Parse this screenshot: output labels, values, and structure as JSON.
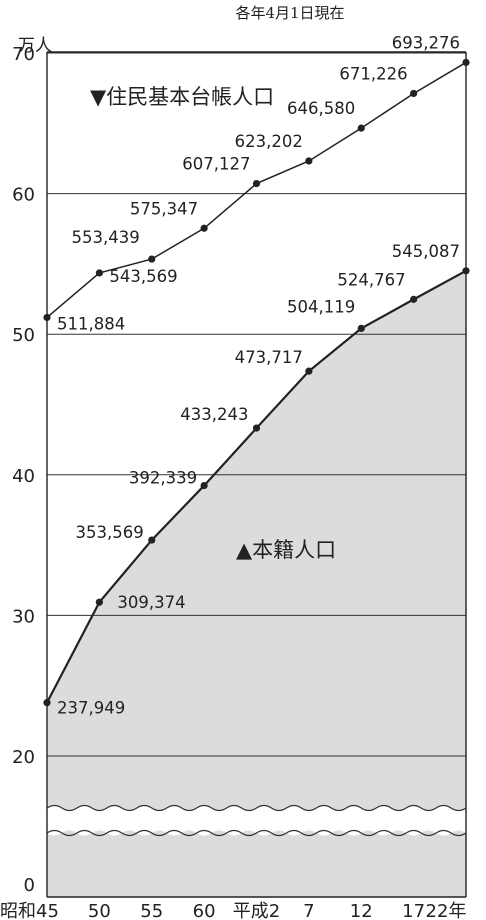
{
  "chart_data": {
    "type": "line",
    "note": "各年4月1日現在",
    "y_unit": "万人",
    "x_unit_suffix": "年",
    "categories": [
      "昭和45",
      "50",
      "55",
      "60",
      "平成2",
      "7",
      "12",
      "17",
      "22"
    ],
    "ylim": [
      0,
      70
    ],
    "y_ticks": [
      0,
      20,
      30,
      40,
      50,
      60,
      70
    ],
    "axis_break": "between 0 and 20",
    "grid": true,
    "series": [
      {
        "name": "▼住民基本台帳人口",
        "values": [
          511884,
          543569,
          553439,
          575347,
          607127,
          623202,
          646580,
          671226,
          693276
        ],
        "labels": [
          "511,884",
          "543,569",
          "553,439",
          "575,347",
          "607,127",
          "623,202",
          "646,580",
          "671,226",
          "693,276"
        ],
        "color": "#222222",
        "fill": "none"
      },
      {
        "name": "▲本籍人口",
        "values": [
          237949,
          309374,
          353569,
          392339,
          433243,
          473717,
          504119,
          524767,
          545087
        ],
        "labels": [
          "237,949",
          "309,374",
          "353,569",
          "392,339",
          "433,243",
          "473,717",
          "504,119",
          "524,767",
          "545,087"
        ],
        "color": "#222222",
        "fill": "#dcdcdc"
      }
    ]
  }
}
